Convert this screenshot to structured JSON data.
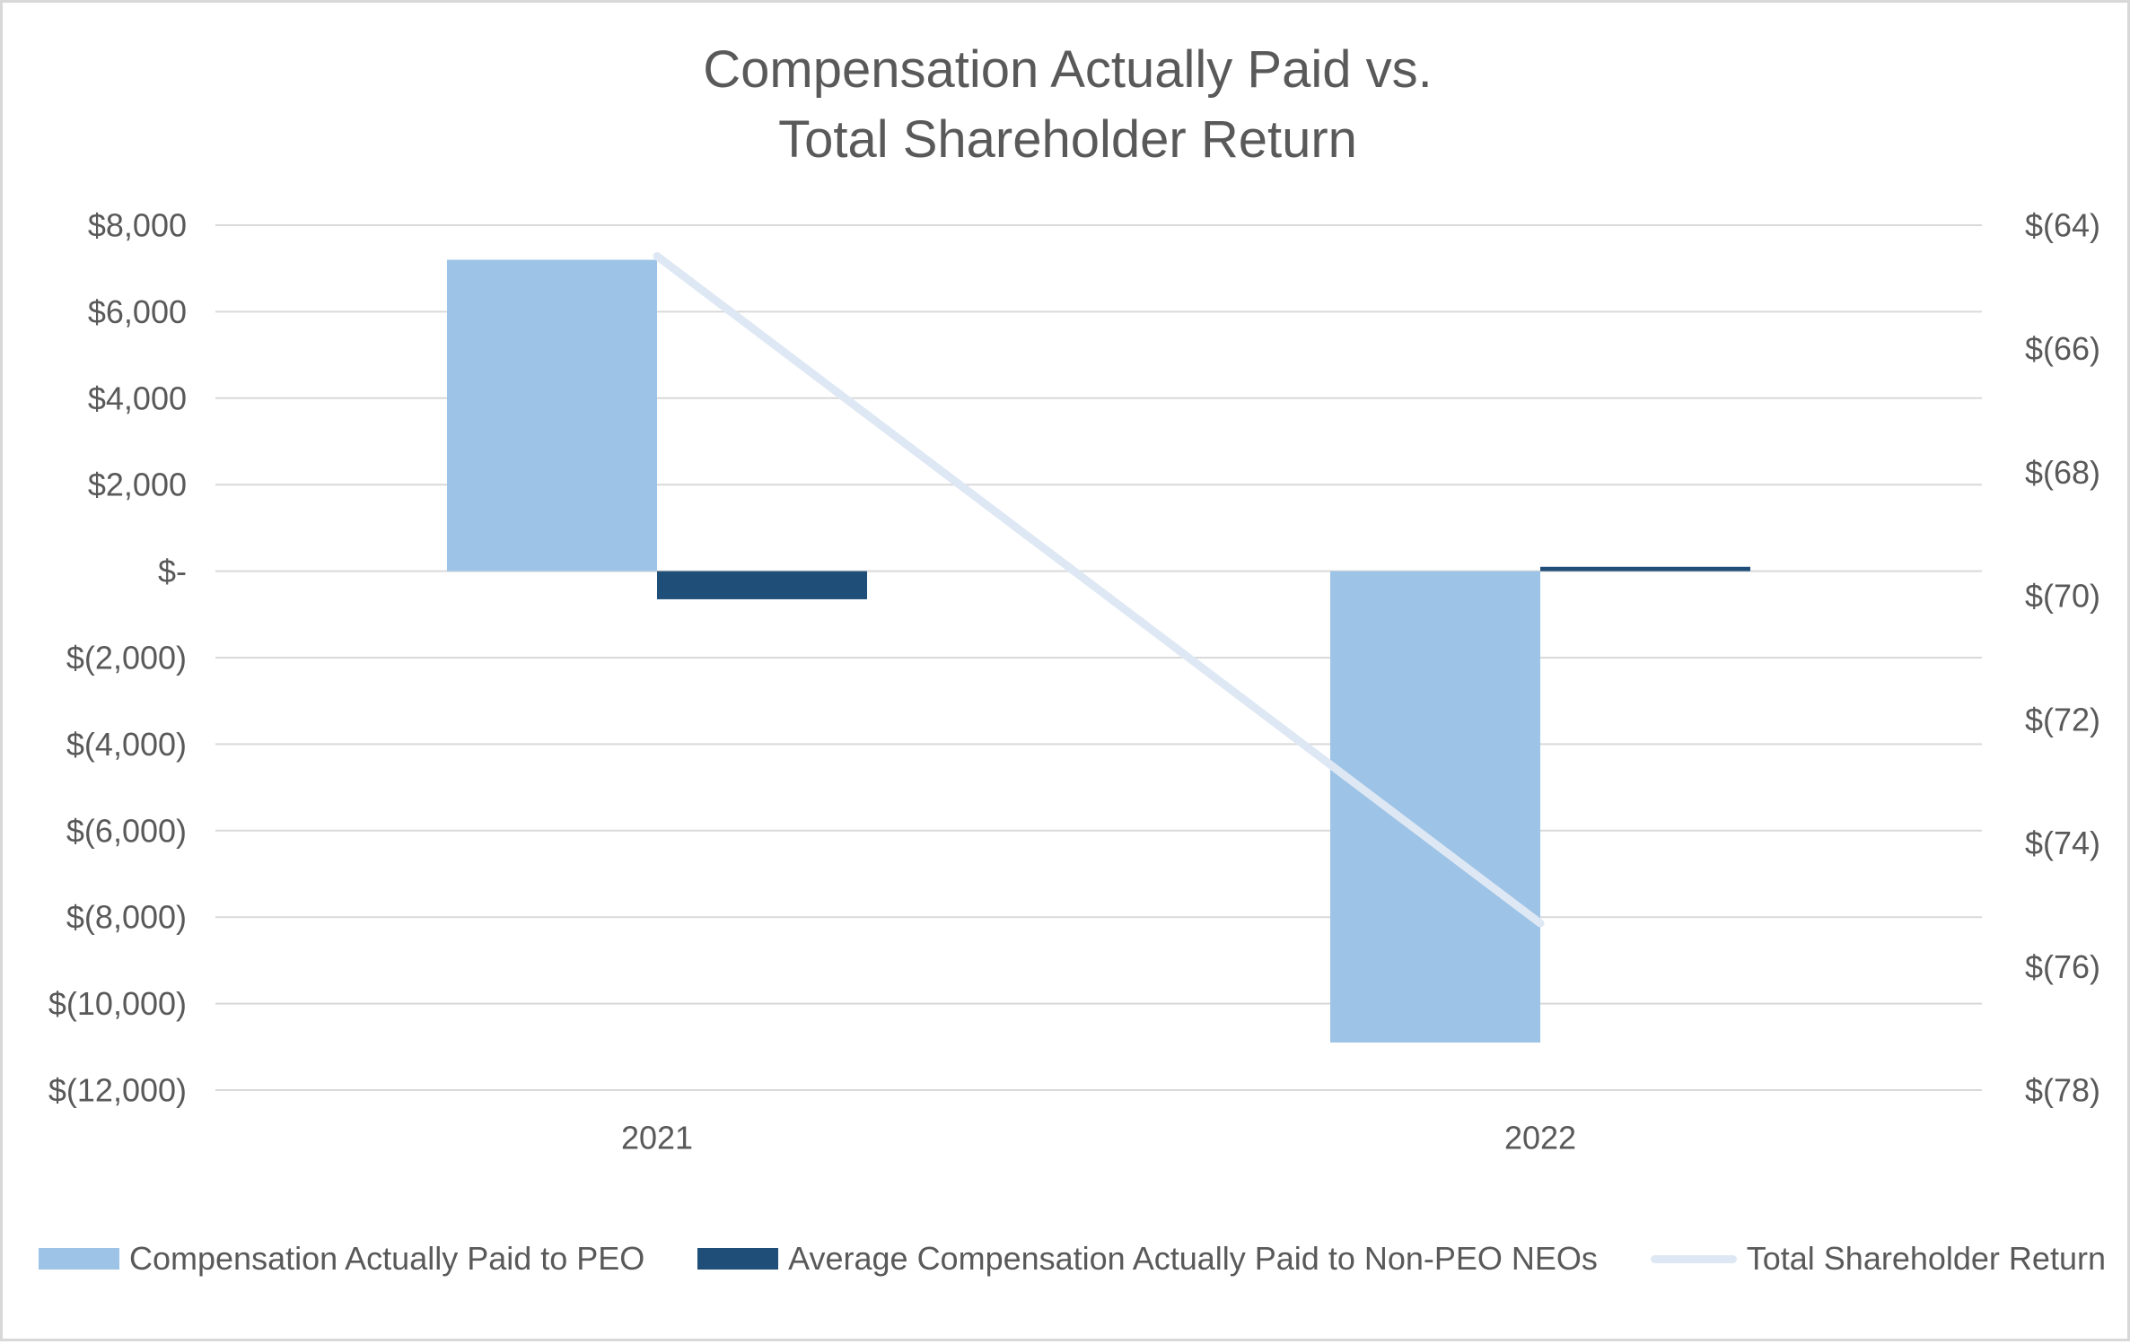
{
  "title": {
    "line1": "Compensation Actually Paid vs.",
    "line2": "Total Shareholder Return"
  },
  "chart_data": {
    "type": "bar+line combo",
    "categories": [
      "2021",
      "2022"
    ],
    "series": [
      {
        "name": "Compensation Actually Paid to PEO",
        "type": "bar",
        "axis": "left",
        "color": "#9DC3E6",
        "values": [
          7200,
          -10900
        ]
      },
      {
        "name": "Average Compensation Actually Paid to Non-PEO NEOs",
        "type": "bar",
        "axis": "left",
        "color": "#1F4E79",
        "values": [
          -650,
          100
        ]
      },
      {
        "name": "Total Shareholder Return",
        "type": "line",
        "axis": "right",
        "color": "#DEE8F4",
        "values": [
          -64.5,
          -75.3
        ]
      }
    ],
    "left_axis": {
      "max": 8000,
      "min": -12000,
      "tick_step": 2000,
      "ticks": [
        "$8,000",
        "$6,000",
        "$4,000",
        "$2,000",
        "$-",
        "$(2,000)",
        "$(4,000)",
        "$(6,000)",
        "$(8,000)",
        "$(10,000)",
        "$(12,000)"
      ]
    },
    "right_axis": {
      "max": -64,
      "min": -78,
      "tick_step": 2,
      "ticks": [
        "$(64)",
        "$(66)",
        "$(68)",
        "$(70)",
        "$(72)",
        "$(74)",
        "$(76)",
        "$(78)"
      ]
    },
    "grid": true,
    "legend_position": "bottom"
  },
  "colors": {
    "text": "#595959",
    "gridline": "#D9D9D9",
    "border": "#D8D8D8",
    "background": "#FFFFFF"
  }
}
